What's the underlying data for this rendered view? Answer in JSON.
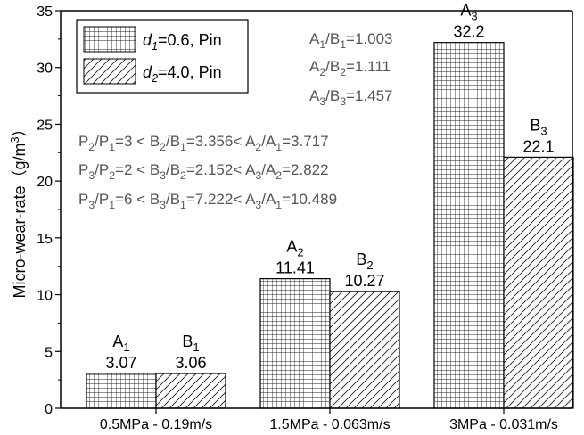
{
  "chart_data": {
    "type": "bar",
    "categories": [
      "0.5MPa - 0.19m/s",
      "1.5MPa - 0.063m/s",
      "3MPa - 0.031m/s"
    ],
    "series": [
      {
        "name_parts": [
          "d",
          "1",
          "=0.6, Pin"
        ],
        "pattern": "grid",
        "values": [
          3.07,
          11.41,
          32.2
        ],
        "top_labels": [
          [
            "A",
            "1"
          ],
          [
            "A",
            "2"
          ],
          [
            "A",
            "3"
          ]
        ],
        "value_labels": [
          "3.07",
          "11.41",
          "32.2"
        ]
      },
      {
        "name_parts": [
          "d",
          "2",
          "=4.0, Pin"
        ],
        "pattern": "hatch",
        "values": [
          3.06,
          10.27,
          22.1
        ],
        "top_labels": [
          [
            "B",
            "1"
          ],
          [
            "B",
            "2"
          ],
          [
            "B",
            "3"
          ]
        ],
        "value_labels": [
          "3.06",
          "10.27",
          "22.1"
        ]
      }
    ],
    "ylabel_parts": [
      "Micro-wear-rate（g/m",
      "3",
      "）"
    ],
    "xlabel": "",
    "ylim": [
      0,
      35
    ],
    "yticks": [
      0,
      5,
      10,
      15,
      20,
      25,
      30,
      35
    ],
    "ytick_labels": [
      "0",
      "5",
      "10",
      "15",
      "20",
      "25",
      "30",
      "35"
    ],
    "grid": false,
    "legend_position": "top-left",
    "annotations": {
      "ratios": [
        [
          [
            "A",
            "1"
          ],
          "/",
          [
            "B",
            "1"
          ],
          "=1.003"
        ],
        [
          [
            "A",
            "2"
          ],
          "/",
          [
            "B",
            "2"
          ],
          "=1.111"
        ],
        [
          [
            "A",
            "3"
          ],
          "/",
          [
            "B",
            "3"
          ],
          "=1.457"
        ]
      ],
      "comparisons": [
        [
          [
            "P",
            "2"
          ],
          "/",
          [
            "P",
            "1"
          ],
          "=3",
          " < ",
          [
            "B",
            "2"
          ],
          "/",
          [
            "B",
            "1"
          ],
          "=3.356",
          "< ",
          [
            "A",
            "2"
          ],
          "/",
          [
            "A",
            "1"
          ],
          "=3.717"
        ],
        [
          [
            "P",
            "3"
          ],
          "/",
          [
            "P",
            "2"
          ],
          "=2",
          " < ",
          [
            "B",
            "3"
          ],
          "/",
          [
            "B",
            "2"
          ],
          "=2.152",
          "< ",
          [
            "A",
            "3"
          ],
          "/",
          [
            "A",
            "2"
          ],
          "=2.822"
        ],
        [
          [
            "P",
            "3"
          ],
          "/",
          [
            "P",
            "1"
          ],
          "=6",
          " < ",
          [
            "B",
            "3"
          ],
          "/",
          [
            "B",
            "1"
          ],
          "=7.222",
          "< ",
          [
            "A",
            "3"
          ],
          "/",
          [
            "A",
            "1"
          ],
          "=10.489"
        ]
      ]
    }
  }
}
